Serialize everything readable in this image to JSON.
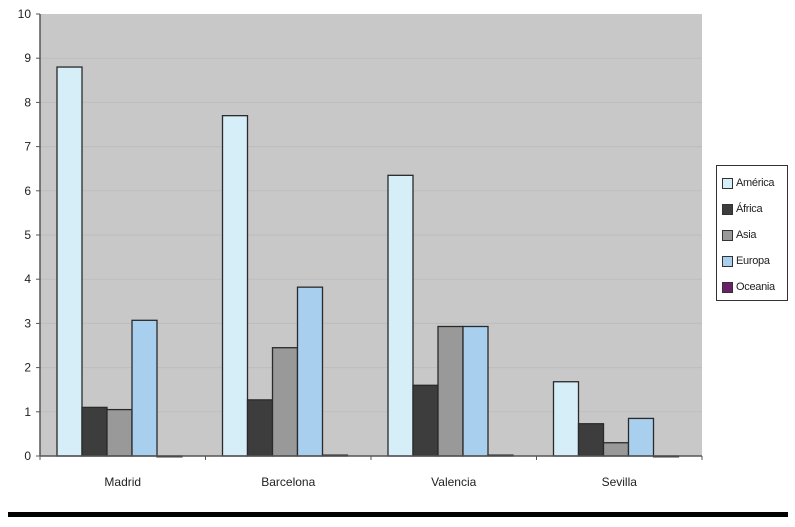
{
  "chart_data": {
    "type": "bar",
    "categories": [
      "Madrid",
      "Barcelona",
      "Valencia",
      "Sevilla"
    ],
    "series": [
      {
        "name": "América",
        "color": "#d6eef8",
        "values": [
          8.8,
          7.7,
          6.35,
          1.68
        ]
      },
      {
        "name": "África",
        "color": "#3d3d3d",
        "values": [
          1.1,
          1.27,
          1.6,
          0.73
        ]
      },
      {
        "name": "Asia",
        "color": "#999999",
        "values": [
          1.05,
          2.45,
          2.93,
          0.3
        ]
      },
      {
        "name": "Europa",
        "color": "#a9cfef",
        "values": [
          3.07,
          3.82,
          2.93,
          0.85
        ]
      },
      {
        "name": "Oceania",
        "color": "#6b1f6b",
        "values": [
          0,
          0.02,
          0.02,
          0
        ]
      }
    ],
    "ylim": [
      0,
      10
    ],
    "yticks": [
      "0",
      "1",
      "2",
      "3",
      "4",
      "5",
      "6",
      "7",
      "8",
      "9",
      "10"
    ],
    "grid": true,
    "legend": "right",
    "plot_background": "#c8c8c8"
  }
}
